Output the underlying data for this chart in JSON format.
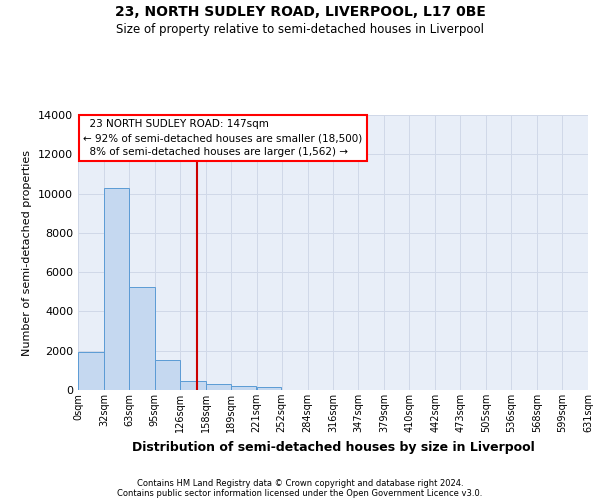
{
  "title": "23, NORTH SUDLEY ROAD, LIVERPOOL, L17 0BE",
  "subtitle": "Size of property relative to semi-detached houses in Liverpool",
  "xlabel": "Distribution of semi-detached houses by size in Liverpool",
  "ylabel": "Number of semi-detached properties",
  "property_label": "23 NORTH SUDLEY ROAD: 147sqm",
  "pct_smaller": 92,
  "count_smaller": 18500,
  "pct_larger": 8,
  "count_larger": 1562,
  "bin_labels": [
    "0sqm",
    "32sqm",
    "63sqm",
    "95sqm",
    "126sqm",
    "158sqm",
    "189sqm",
    "221sqm",
    "252sqm",
    "284sqm",
    "316sqm",
    "347sqm",
    "379sqm",
    "410sqm",
    "442sqm",
    "473sqm",
    "505sqm",
    "536sqm",
    "568sqm",
    "599sqm",
    "631sqm"
  ],
  "bin_edges": [
    0,
    32,
    63,
    95,
    126,
    158,
    189,
    221,
    252,
    284,
    316,
    347,
    379,
    410,
    442,
    473,
    505,
    536,
    568,
    599,
    631
  ],
  "bar_values": [
    1950,
    10300,
    5250,
    1550,
    480,
    330,
    220,
    160,
    0,
    0,
    0,
    0,
    0,
    0,
    0,
    0,
    0,
    0,
    0,
    0
  ],
  "bar_color": "#c5d8f0",
  "bar_edge_color": "#5b9bd5",
  "grid_color": "#d0d8e8",
  "background_color": "#e8eef8",
  "vline_color": "#cc0000",
  "vline_x": 147,
  "ylim": [
    0,
    14000
  ],
  "yticks": [
    0,
    2000,
    4000,
    6000,
    8000,
    10000,
    12000,
    14000
  ],
  "footer_line1": "Contains HM Land Registry data © Crown copyright and database right 2024.",
  "footer_line2": "Contains public sector information licensed under the Open Government Licence v3.0."
}
